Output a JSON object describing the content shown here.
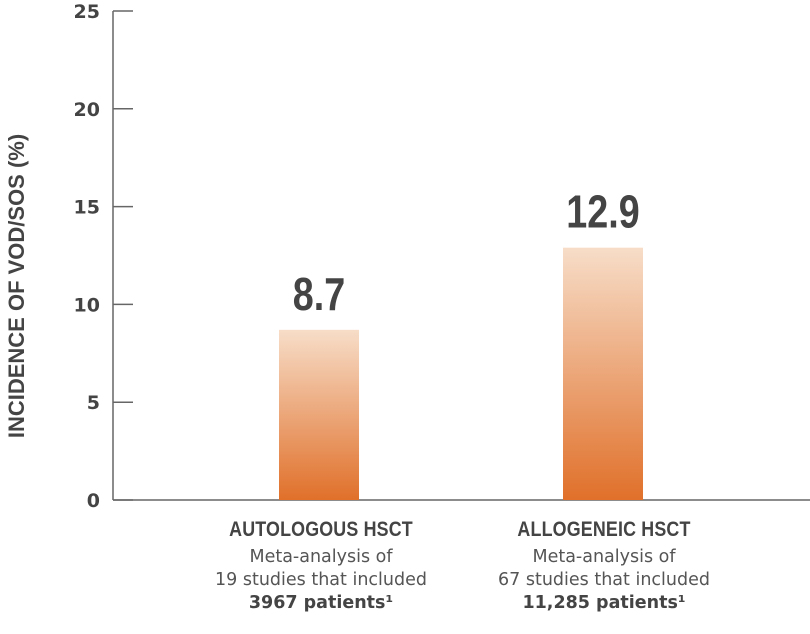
{
  "chart_data": {
    "type": "bar",
    "title": "",
    "xlabel": "",
    "ylabel": "INCIDENCE OF VOD/SOS (%)",
    "ylim": [
      0,
      25
    ],
    "yticks": [
      "0",
      "5",
      "10",
      "15",
      "20",
      "25"
    ],
    "grid": false,
    "categories": [
      "AUTOLOGOUS HSCT",
      "ALLOGENEIC HSCT"
    ],
    "values": [
      8.7,
      12.9
    ],
    "data_labels": [
      "8.7",
      "12.9"
    ],
    "colors": {
      "bar_top": "#f7ddc8",
      "bar_bottom": "#e0702a",
      "axis": "#666666",
      "text": "#444444"
    }
  },
  "captions": [
    {
      "title": "AUTOLOGOUS HSCT",
      "line1": "Meta-analysis of",
      "line2": "19 studies that included",
      "line3": "3967 patients¹"
    },
    {
      "title": "ALLOGENEIC HSCT",
      "line1": "Meta-analysis of",
      "line2": "67 studies that included",
      "line3": "11,285 patients¹"
    }
  ]
}
